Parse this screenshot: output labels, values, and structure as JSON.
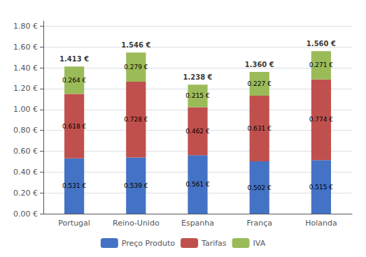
{
  "chart_data": {
    "type": "bar",
    "stacked": true,
    "categories": [
      "Portugal",
      "Reino-Unido",
      "Espanha",
      "França",
      "Holanda"
    ],
    "series": [
      {
        "name": "Preço Produto",
        "color": "#4472C4",
        "values": [
          0.531,
          0.539,
          0.561,
          0.502,
          0.515
        ],
        "value_labels": [
          "0.531 €",
          "0.539 €",
          "0.561 €",
          "0.502 €",
          "0.515 €"
        ]
      },
      {
        "name": "Tarifas",
        "color": "#C0504D",
        "values": [
          0.618,
          0.728,
          0.462,
          0.631,
          0.774
        ],
        "value_labels": [
          "0.618 €",
          "0.728 €",
          "0.462 €",
          "0.631 €",
          "0.774 €"
        ]
      },
      {
        "name": "IVA",
        "color": "#9BBB59",
        "values": [
          0.264,
          0.279,
          0.215,
          0.227,
          0.271
        ],
        "value_labels": [
          "0.264 €",
          "0.279 €",
          "0.215 €",
          "0.227 €",
          "0.271 €"
        ]
      }
    ],
    "totals": {
      "values": [
        1.413,
        1.546,
        1.238,
        1.36,
        1.56
      ],
      "value_labels": [
        "1.413 €",
        "1.546 €",
        "1.238 €",
        "1.360 €",
        "1.560 €"
      ]
    },
    "data_labels": true,
    "ylim": [
      0,
      1.85
    ],
    "yticks": [
      {
        "value": 0.0,
        "label": "0.00 €"
      },
      {
        "value": 0.2,
        "label": "0.20 €"
      },
      {
        "value": 0.4,
        "label": "0.40 €"
      },
      {
        "value": 0.6,
        "label": "0.60 €"
      },
      {
        "value": 0.8,
        "label": "0.80 €"
      },
      {
        "value": 1.0,
        "label": "1.00 €"
      },
      {
        "value": 1.2,
        "label": "1.20 €"
      },
      {
        "value": 1.4,
        "label": "1.40 €"
      },
      {
        "value": 1.6,
        "label": "1.60 €"
      },
      {
        "value": 1.8,
        "label": "1.80 €"
      }
    ],
    "grid": true,
    "legend": "bottom"
  }
}
